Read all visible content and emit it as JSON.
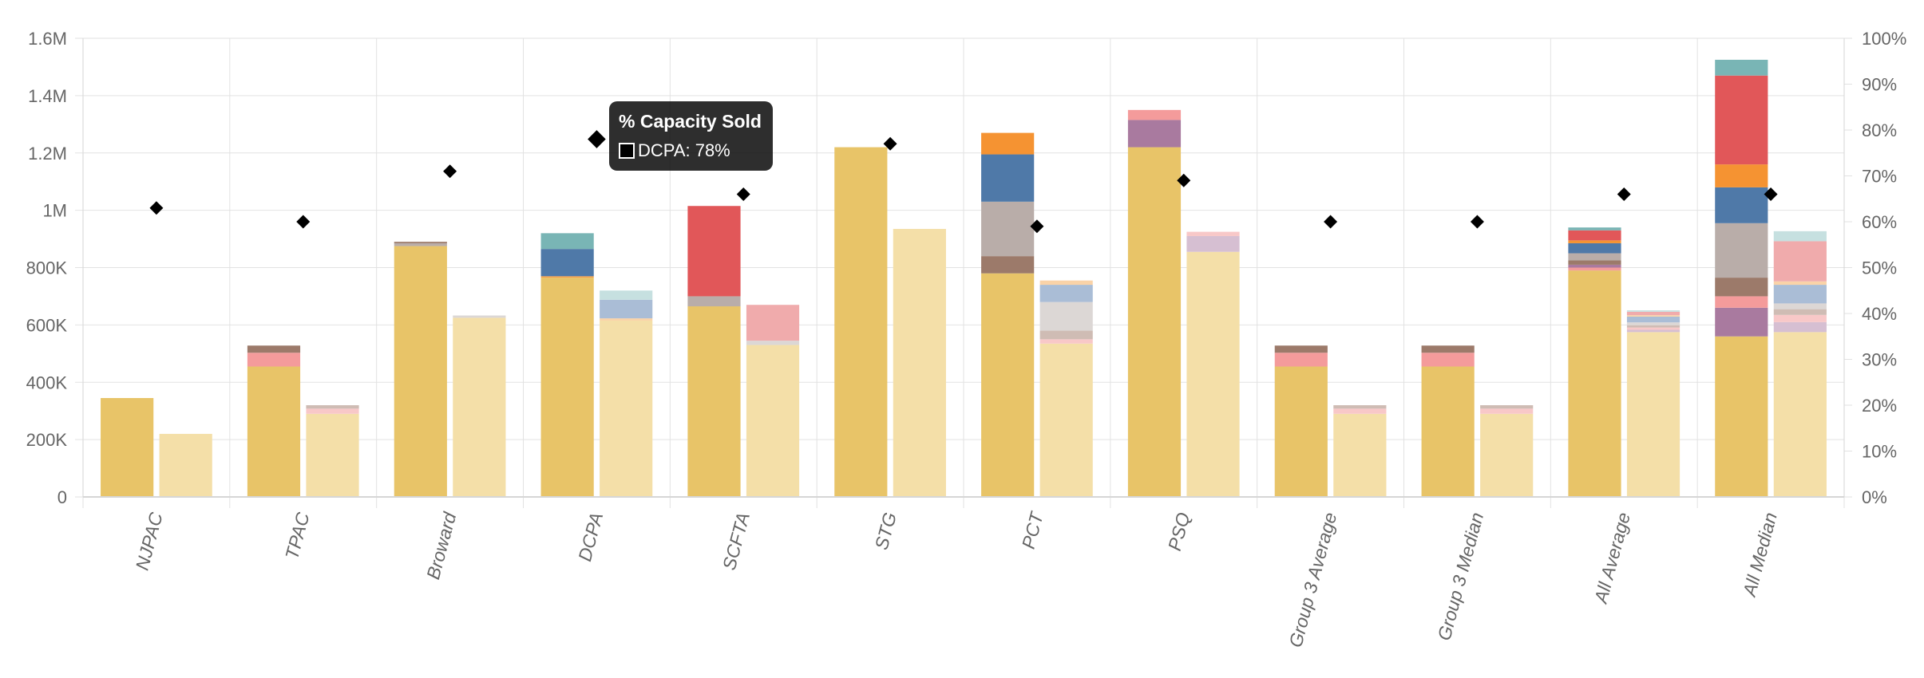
{
  "chart_data": {
    "type": "bar",
    "subtype": "stacked-grouped-bar-with-dot-overlay",
    "categories": [
      "NJPAC",
      "TPAC",
      "Broward",
      "DCPA",
      "SCFTA",
      "STG",
      "PCT",
      "PSQ",
      "Group 3 Average",
      "Group 3 Median",
      "All Average",
      "All Median"
    ],
    "left_axis": {
      "min": 0,
      "max": 1600000,
      "ticks": [
        "0",
        "200K",
        "400K",
        "600K",
        "800K",
        "1M",
        "1.2M",
        "1.4M",
        "1.6M"
      ]
    },
    "right_axis": {
      "min": 0,
      "max": 100,
      "unit": "%",
      "ticks": [
        "0%",
        "10%",
        "20%",
        "30%",
        "40%",
        "50%",
        "60%",
        "70%",
        "80%",
        "90%",
        "100%"
      ]
    },
    "stacks": [
      {
        "name": "stack-a",
        "style": "solid",
        "values": [
          [
            {
              "v": 345000,
              "c": "#e8c468"
            }
          ],
          [
            {
              "v": 455000,
              "c": "#e8c468"
            },
            {
              "v": 48000,
              "c": "#f49b9b"
            },
            {
              "v": 25000,
              "c": "#9c7a6a"
            }
          ],
          [
            {
              "v": 875000,
              "c": "#e8c468"
            },
            {
              "v": 10000,
              "c": "#b9ada9"
            },
            {
              "v": 5000,
              "c": "#9c7a6a"
            }
          ],
          [
            {
              "v": 765000,
              "c": "#e8c468"
            },
            {
              "v": 5000,
              "c": "#f4a04a"
            },
            {
              "v": 95000,
              "c": "#4f79a8"
            },
            {
              "v": 55000,
              "c": "#79b5b5"
            }
          ],
          [
            {
              "v": 665000,
              "c": "#e8c468"
            },
            {
              "v": 35000,
              "c": "#b9ada9"
            },
            {
              "v": 315000,
              "c": "#e15759"
            }
          ],
          [
            {
              "v": 1220000,
              "c": "#e8c468"
            }
          ],
          [
            {
              "v": 780000,
              "c": "#e8c468"
            },
            {
              "v": 60000,
              "c": "#9c7a6a"
            },
            {
              "v": 190000,
              "c": "#b9ada9"
            },
            {
              "v": 165000,
              "c": "#4f79a8"
            },
            {
              "v": 75000,
              "c": "#f59332"
            }
          ],
          [
            {
              "v": 1220000,
              "c": "#e8c468"
            },
            {
              "v": 95000,
              "c": "#a97a9f"
            },
            {
              "v": 35000,
              "c": "#f49b9b"
            }
          ],
          [
            {
              "v": 455000,
              "c": "#e8c468"
            },
            {
              "v": 48000,
              "c": "#f49b9b"
            },
            {
              "v": 25000,
              "c": "#9c7a6a"
            }
          ],
          [
            {
              "v": 455000,
              "c": "#e8c468"
            },
            {
              "v": 48000,
              "c": "#f49b9b"
            },
            {
              "v": 25000,
              "c": "#9c7a6a"
            }
          ],
          [
            {
              "v": 790000,
              "c": "#e8c468"
            },
            {
              "v": 10000,
              "c": "#f49b9b"
            },
            {
              "v": 10000,
              "c": "#a97a9f"
            },
            {
              "v": 15000,
              "c": "#9c7a6a"
            },
            {
              "v": 25000,
              "c": "#b9ada9"
            },
            {
              "v": 35000,
              "c": "#4f79a8"
            },
            {
              "v": 10000,
              "c": "#f59332"
            },
            {
              "v": 35000,
              "c": "#e15759"
            },
            {
              "v": 10000,
              "c": "#79b5b5"
            }
          ],
          [
            {
              "v": 560000,
              "c": "#e8c468"
            },
            {
              "v": 100000,
              "c": "#a97a9f"
            },
            {
              "v": 40000,
              "c": "#f49b9b"
            },
            {
              "v": 65000,
              "c": "#9c7a6a"
            },
            {
              "v": 190000,
              "c": "#b9ada9"
            },
            {
              "v": 125000,
              "c": "#4f79a8"
            },
            {
              "v": 80000,
              "c": "#f59332"
            },
            {
              "v": 310000,
              "c": "#e15759"
            },
            {
              "v": 55000,
              "c": "#79b5b5"
            }
          ]
        ]
      },
      {
        "name": "stack-b",
        "style": "light",
        "values": [
          [
            {
              "v": 220000,
              "c": "#f4dfa8"
            }
          ],
          [
            {
              "v": 290000,
              "c": "#f4dfa8"
            },
            {
              "v": 18000,
              "c": "#f8c8c8"
            },
            {
              "v": 12000,
              "c": "#cfbcb4"
            }
          ],
          [
            {
              "v": 625000,
              "c": "#f4dfa8"
            },
            {
              "v": 8000,
              "c": "#dcd7d5"
            }
          ],
          [
            {
              "v": 615000,
              "c": "#f4dfa8"
            },
            {
              "v": 8000,
              "c": "#fad3a8"
            },
            {
              "v": 65000,
              "c": "#aabdd6"
            },
            {
              "v": 32000,
              "c": "#c6e0e0"
            }
          ],
          [
            {
              "v": 530000,
              "c": "#f4dfa8"
            },
            {
              "v": 15000,
              "c": "#dcd7d5"
            },
            {
              "v": 125000,
              "c": "#f0abac"
            }
          ],
          [
            {
              "v": 935000,
              "c": "#f4dfa8"
            }
          ],
          [
            {
              "v": 535000,
              "c": "#f4dfa8"
            },
            {
              "v": 15000,
              "c": "#f8c8c8"
            },
            {
              "v": 30000,
              "c": "#cfbcb4"
            },
            {
              "v": 100000,
              "c": "#dcd7d5"
            },
            {
              "v": 60000,
              "c": "#aabdd6"
            },
            {
              "v": 15000,
              "c": "#fad3a8"
            }
          ],
          [
            {
              "v": 855000,
              "c": "#f4dfa8"
            },
            {
              "v": 55000,
              "c": "#d6bfd2"
            },
            {
              "v": 15000,
              "c": "#f8c8c8"
            }
          ],
          [
            {
              "v": 290000,
              "c": "#f4dfa8"
            },
            {
              "v": 18000,
              "c": "#f8c8c8"
            },
            {
              "v": 12000,
              "c": "#cfbcb4"
            }
          ],
          [
            {
              "v": 290000,
              "c": "#f4dfa8"
            },
            {
              "v": 18000,
              "c": "#f8c8c8"
            },
            {
              "v": 12000,
              "c": "#cfbcb4"
            }
          ],
          [
            {
              "v": 575000,
              "c": "#f4dfa8"
            },
            {
              "v": 8000,
              "c": "#d6bfd2"
            },
            {
              "v": 8000,
              "c": "#f8c8c8"
            },
            {
              "v": 8000,
              "c": "#cfbcb4"
            },
            {
              "v": 10000,
              "c": "#dcd7d5"
            },
            {
              "v": 20000,
              "c": "#aabdd6"
            },
            {
              "v": 5000,
              "c": "#fad3a8"
            },
            {
              "v": 12000,
              "c": "#f0abac"
            },
            {
              "v": 5000,
              "c": "#c6e0e0"
            }
          ],
          [
            {
              "v": 575000,
              "c": "#f4dfa8"
            },
            {
              "v": 35000,
              "c": "#d6bfd2"
            },
            {
              "v": 25000,
              "c": "#f8c8c8"
            },
            {
              "v": 20000,
              "c": "#cfbcb4"
            },
            {
              "v": 20000,
              "c": "#dcd7d5"
            },
            {
              "v": 65000,
              "c": "#aabdd6"
            },
            {
              "v": 12000,
              "c": "#fad3a8"
            },
            {
              "v": 140000,
              "c": "#f0abac"
            },
            {
              "v": 35000,
              "c": "#c6e0e0"
            }
          ]
        ]
      }
    ],
    "dot_series": {
      "name": "% Capacity Sold",
      "axis": "right",
      "color": "#000000",
      "values": [
        63,
        60,
        71,
        78,
        66,
        77,
        59,
        69,
        60,
        60,
        66,
        66
      ]
    },
    "tooltip": {
      "title": "% Capacity Sold",
      "label": "DCPA: 78%",
      "category_index": 3
    },
    "grid": true,
    "legend": "none"
  }
}
